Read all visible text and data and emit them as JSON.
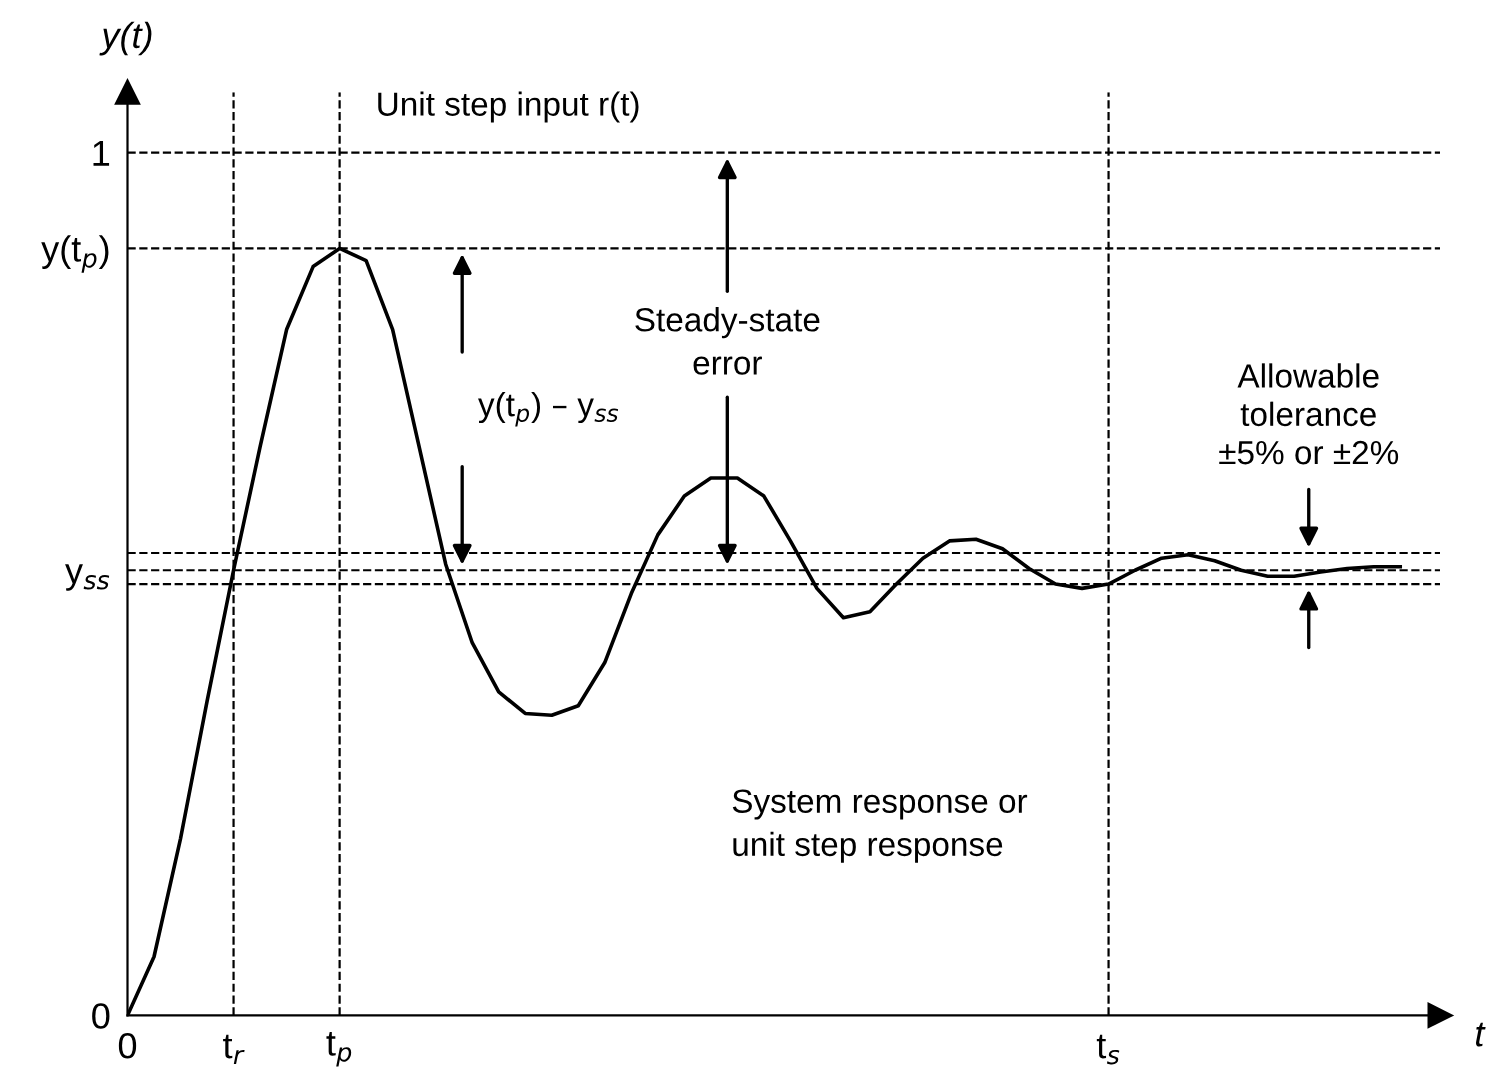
{
  "chart_data": {
    "type": "line",
    "xlabel": "t",
    "ylabel": "y(t)",
    "categories": [
      "0",
      null,
      null,
      null,
      "t$_{r}$",
      null,
      null,
      null,
      "t$_{p}$",
      null,
      null,
      null,
      null,
      null,
      null,
      null,
      null,
      null,
      null,
      null,
      null,
      null,
      null,
      null,
      null,
      null,
      null,
      null,
      null,
      null,
      null,
      null,
      null,
      null,
      null,
      null,
      null,
      "t$_{s}$",
      null,
      null,
      null,
      null,
      null,
      null,
      null,
      null,
      null,
      null,
      null
    ],
    "series": [
      {
        "color": "#000000",
        "values": [
          0,
          0.068,
          0.205,
          0.364,
          0.516,
          0.659,
          0.795,
          0.868,
          0.889,
          0.875,
          0.795,
          0.659,
          0.523,
          0.432,
          0.375,
          0.35,
          0.348,
          0.359,
          0.409,
          0.489,
          0.557,
          0.602,
          0.623,
          0.623,
          0.602,
          0.55,
          0.495,
          0.461,
          0.468,
          0.5,
          0.53,
          0.55,
          0.552,
          0.541,
          0.518,
          0.5,
          0.495,
          0.5,
          0.516,
          0.53,
          0.534,
          0.527,
          0.516,
          0.509,
          0.509,
          0.514,
          0.518,
          0.52,
          0.52
        ]
      }
    ],
    "ylim": [
      0,
      1.07
    ],
    "yticks": [
      0,
      {
        "value": 0.516,
        "label": "y$_{ss}$"
      },
      {
        "value": 0.889,
        "label": "y(t$_{p}$)"
      },
      1
    ],
    "grid": false,
    "ref_lines": [
      {
        "axis": "y",
        "value": 1,
        "color": "#000000",
        "line_style": "dashed"
      },
      {
        "axis": "y",
        "value": 0.889,
        "color": "#000000",
        "line_style": "dashed"
      },
      {
        "axis": "y",
        "value": 0.516,
        "color": "#000000",
        "line_style": "dashed"
      },
      {
        "axis": "y",
        "value": 0.536,
        "color": "#000000",
        "line_style": "dashed"
      },
      {
        "axis": "y",
        "value": 0.5,
        "color": "#000000",
        "line_style": "dashed"
      },
      {
        "axis": "x",
        "value": "t$_{r}$",
        "color": "#000000",
        "line_style": "dashed"
      },
      {
        "axis": "x",
        "value": "t$_{p}$",
        "color": "#000000",
        "line_style": "dashed"
      },
      {
        "axis": "x",
        "value": "t$_{s}$",
        "color": "#000000",
        "line_style": "dashed"
      }
    ],
    "annotations": [
      {
        "text": "Unit step input r(t)",
        "y": 1
      },
      "y(t$_{p}$) – y$_{ss}$",
      {
        "text": "Steady-state\nerror",
        "y": 0.516
      },
      {
        "text": "Allowable\ntolerance\n±5% or ±2%",
        "y": 0.536
      },
      "System response or\nunit step response"
    ]
  }
}
